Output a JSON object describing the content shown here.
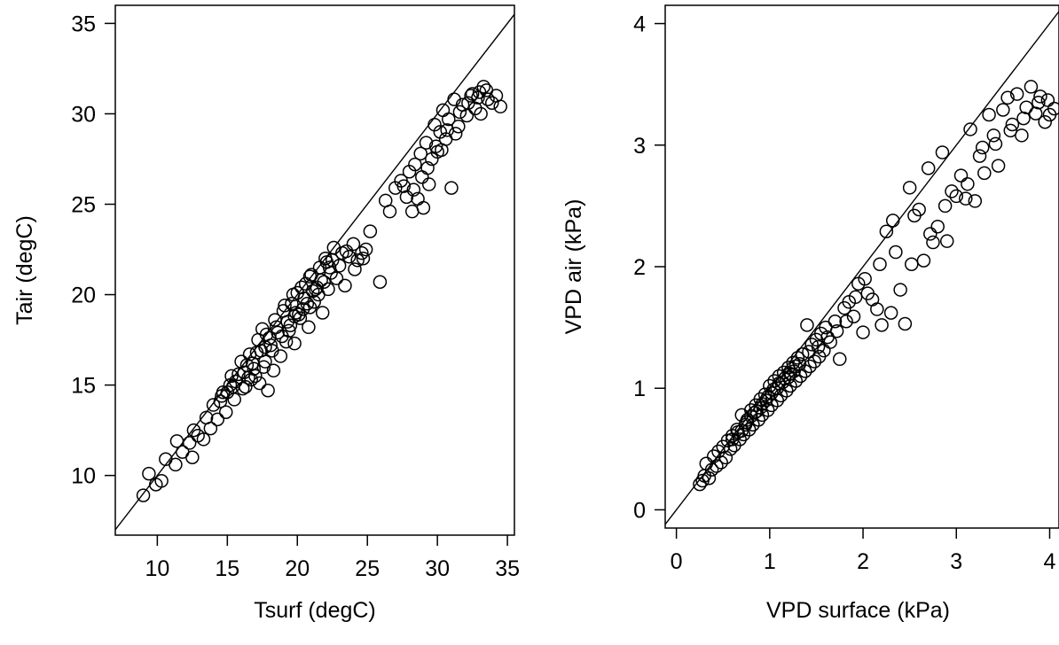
{
  "chart_data": [
    {
      "type": "scatter",
      "xlabel": "Tsurf (degC)",
      "ylabel": "Tair (degC)",
      "xlim": [
        7,
        35.5
      ],
      "ylim": [
        6.7,
        36
      ],
      "xticks": [
        10,
        15,
        20,
        25,
        30,
        35
      ],
      "yticks": [
        10,
        15,
        20,
        25,
        30,
        35
      ],
      "grid": false,
      "reference_line": "1:1",
      "marker": "open-circle",
      "points": [
        [
          9.0,
          8.9
        ],
        [
          9.4,
          10.1
        ],
        [
          9.9,
          9.5
        ],
        [
          10.3,
          9.7
        ],
        [
          10.6,
          10.9
        ],
        [
          11.3,
          10.6
        ],
        [
          11.4,
          11.9
        ],
        [
          11.8,
          11.3
        ],
        [
          12.3,
          11.8
        ],
        [
          12.5,
          11.0
        ],
        [
          12.6,
          12.5
        ],
        [
          12.9,
          12.2
        ],
        [
          13.3,
          12.0
        ],
        [
          13.5,
          13.2
        ],
        [
          13.8,
          12.6
        ],
        [
          14.0,
          13.9
        ],
        [
          14.3,
          13.1
        ],
        [
          14.6,
          14.4
        ],
        [
          14.9,
          13.5
        ],
        [
          15.2,
          15.0
        ],
        [
          15.5,
          14.2
        ],
        [
          15.8,
          15.6
        ],
        [
          16.1,
          14.8
        ],
        [
          16.4,
          16.1
        ],
        [
          16.7,
          15.3
        ],
        [
          16.9,
          15.9
        ],
        [
          17.1,
          16.8
        ],
        [
          17.3,
          15.1
        ],
        [
          17.5,
          18.1
        ],
        [
          17.7,
          16.3
        ],
        [
          17.9,
          14.7
        ],
        [
          18.1,
          17.2
        ],
        [
          18.3,
          15.8
        ],
        [
          18.5,
          18.2
        ],
        [
          18.8,
          16.6
        ],
        [
          19.0,
          19.1
        ],
        [
          19.2,
          17.4
        ],
        [
          19.4,
          18.0
        ],
        [
          19.6,
          19.5
        ],
        [
          19.8,
          17.3
        ],
        [
          20.0,
          20.1
        ],
        [
          20.2,
          18.7
        ],
        [
          20.4,
          19.2
        ],
        [
          20.6,
          20.6
        ],
        [
          20.8,
          18.2
        ],
        [
          21.0,
          21.1
        ],
        [
          21.2,
          19.6
        ],
        [
          21.4,
          20.4
        ],
        [
          21.6,
          21.5
        ],
        [
          21.8,
          19.0
        ],
        [
          22.0,
          22.0
        ],
        [
          22.2,
          20.3
        ],
        [
          22.4,
          21.2
        ],
        [
          22.6,
          22.6
        ],
        [
          22.8,
          20.9
        ],
        [
          23.0,
          21.6
        ],
        [
          23.2,
          22.3
        ],
        [
          23.4,
          20.5
        ],
        [
          23.7,
          22.1
        ],
        [
          24.0,
          22.8
        ],
        [
          24.3,
          21.9
        ],
        [
          24.6,
          22.3
        ],
        [
          24.9,
          22.5
        ],
        [
          25.2,
          23.5
        ],
        [
          25.9,
          20.7
        ],
        [
          26.3,
          25.2
        ],
        [
          26.6,
          24.6
        ],
        [
          27.0,
          25.9
        ],
        [
          27.4,
          26.3
        ],
        [
          27.8,
          25.4
        ],
        [
          28.0,
          26.8
        ],
        [
          28.2,
          24.6
        ],
        [
          28.4,
          27.2
        ],
        [
          28.6,
          25.3
        ],
        [
          28.8,
          27.8
        ],
        [
          29.0,
          24.8
        ],
        [
          29.2,
          28.4
        ],
        [
          29.4,
          26.1
        ],
        [
          29.6,
          27.5
        ],
        [
          29.8,
          29.4
        ],
        [
          30.0,
          27.9
        ],
        [
          30.2,
          29.0
        ],
        [
          30.4,
          30.2
        ],
        [
          30.6,
          28.6
        ],
        [
          30.8,
          29.7
        ],
        [
          31.0,
          25.9
        ],
        [
          31.2,
          30.8
        ],
        [
          31.5,
          29.3
        ],
        [
          31.8,
          30.5
        ],
        [
          32.1,
          29.9
        ],
        [
          32.4,
          31.0
        ],
        [
          32.7,
          30.3
        ],
        [
          33.0,
          31.2
        ],
        [
          33.3,
          31.5
        ],
        [
          33.6,
          30.8
        ],
        [
          33.9,
          30.6
        ],
        [
          34.2,
          31.0
        ],
        [
          34.5,
          30.4
        ],
        [
          14.5,
          14.1
        ],
        [
          15.0,
          14.6
        ],
        [
          15.6,
          15.2
        ],
        [
          16.2,
          15.7
        ],
        [
          16.8,
          16.2
        ],
        [
          17.4,
          16.9
        ],
        [
          18.0,
          17.6
        ],
        [
          18.6,
          17.9
        ],
        [
          19.3,
          18.5
        ],
        [
          19.9,
          19.0
        ],
        [
          20.5,
          19.8
        ],
        [
          21.1,
          20.2
        ],
        [
          21.7,
          20.8
        ],
        [
          22.3,
          21.5
        ],
        [
          15.3,
          15.5
        ],
        [
          16.0,
          16.3
        ],
        [
          16.6,
          16.7
        ],
        [
          17.2,
          17.5
        ],
        [
          17.8,
          17.8
        ],
        [
          18.4,
          18.6
        ],
        [
          19.1,
          19.4
        ],
        [
          19.7,
          20.0
        ],
        [
          20.3,
          20.4
        ],
        [
          20.9,
          21.0
        ],
        [
          21.5,
          20.0
        ],
        [
          22.1,
          21.8
        ],
        [
          16.3,
          14.9
        ],
        [
          17.0,
          15.5
        ],
        [
          17.6,
          16.0
        ],
        [
          18.2,
          16.9
        ],
        [
          18.9,
          17.7
        ],
        [
          19.5,
          18.3
        ],
        [
          20.1,
          18.9
        ],
        [
          20.7,
          19.5
        ],
        [
          21.3,
          20.3
        ],
        [
          21.9,
          20.7
        ],
        [
          14.7,
          14.6
        ],
        [
          15.4,
          14.9
        ],
        [
          16.5,
          15.4
        ],
        [
          17.7,
          17.1
        ],
        [
          19.8,
          18.8
        ],
        [
          20.9,
          19.3
        ],
        [
          22.5,
          21.9
        ],
        [
          23.5,
          22.4
        ],
        [
          24.1,
          21.4
        ],
        [
          24.7,
          22.0
        ],
        [
          28.9,
          26.5
        ],
        [
          29.9,
          28.2
        ],
        [
          30.7,
          29.1
        ],
        [
          31.6,
          30.1
        ],
        [
          32.2,
          30.6
        ],
        [
          32.9,
          30.9
        ],
        [
          33.5,
          31.3
        ],
        [
          27.6,
          26.0
        ],
        [
          28.3,
          25.8
        ],
        [
          29.3,
          27.0
        ],
        [
          30.3,
          28.0
        ],
        [
          31.3,
          28.9
        ],
        [
          32.5,
          31.1
        ],
        [
          33.1,
          30.0
        ]
      ]
    },
    {
      "type": "scatter",
      "xlabel": "VPD surface (kPa)",
      "ylabel": "VPD air (kPa)",
      "xlim": [
        -0.12,
        4.1
      ],
      "ylim": [
        -0.15,
        4.15
      ],
      "xticks": [
        0,
        1,
        2,
        3,
        4
      ],
      "yticks": [
        0,
        1,
        2,
        3,
        4
      ],
      "grid": false,
      "reference_line": "1:1",
      "marker": "open-circle",
      "points": [
        [
          0.25,
          0.21
        ],
        [
          0.28,
          0.24
        ],
        [
          0.3,
          0.28
        ],
        [
          0.32,
          0.38
        ],
        [
          0.35,
          0.26
        ],
        [
          0.38,
          0.33
        ],
        [
          0.4,
          0.44
        ],
        [
          0.43,
          0.36
        ],
        [
          0.45,
          0.48
        ],
        [
          0.48,
          0.39
        ],
        [
          0.5,
          0.52
        ],
        [
          0.53,
          0.43
        ],
        [
          0.55,
          0.57
        ],
        [
          0.58,
          0.5
        ],
        [
          0.6,
          0.61
        ],
        [
          0.62,
          0.53
        ],
        [
          0.65,
          0.66
        ],
        [
          0.68,
          0.58
        ],
        [
          0.7,
          0.78
        ],
        [
          0.72,
          0.62
        ],
        [
          0.75,
          0.72
        ],
        [
          0.78,
          0.66
        ],
        [
          0.8,
          0.82
        ],
        [
          0.82,
          0.7
        ],
        [
          0.85,
          0.86
        ],
        [
          0.88,
          0.74
        ],
        [
          0.9,
          0.91
        ],
        [
          0.92,
          0.78
        ],
        [
          0.95,
          0.95
        ],
        [
          0.98,
          0.82
        ],
        [
          1.0,
          1.02
        ],
        [
          1.02,
          0.86
        ],
        [
          1.05,
          1.06
        ],
        [
          1.08,
          0.9
        ],
        [
          1.1,
          1.1
        ],
        [
          1.12,
          0.94
        ],
        [
          1.15,
          1.13
        ],
        [
          1.18,
          0.98
        ],
        [
          1.2,
          1.17
        ],
        [
          1.22,
          1.02
        ],
        [
          1.25,
          1.21
        ],
        [
          1.28,
          1.06
        ],
        [
          1.3,
          1.25
        ],
        [
          1.33,
          1.1
        ],
        [
          1.35,
          1.28
        ],
        [
          1.38,
          1.14
        ],
        [
          1.4,
          1.52
        ],
        [
          1.43,
          1.18
        ],
        [
          1.45,
          1.36
        ],
        [
          1.48,
          1.22
        ],
        [
          1.5,
          1.4
        ],
        [
          1.53,
          1.26
        ],
        [
          1.55,
          1.45
        ],
        [
          1.58,
          1.31
        ],
        [
          1.6,
          1.5
        ],
        [
          1.65,
          1.38
        ],
        [
          1.7,
          1.55
        ],
        [
          1.75,
          1.24
        ],
        [
          1.8,
          1.66
        ],
        [
          1.85,
          1.71
        ],
        [
          1.9,
          1.59
        ],
        [
          1.95,
          1.86
        ],
        [
          2.0,
          1.46
        ],
        [
          2.05,
          1.78
        ],
        [
          2.1,
          1.73
        ],
        [
          2.15,
          1.65
        ],
        [
          2.2,
          1.52
        ],
        [
          2.25,
          2.29
        ],
        [
          2.3,
          1.62
        ],
        [
          2.35,
          2.12
        ],
        [
          2.4,
          1.81
        ],
        [
          2.45,
          1.53
        ],
        [
          2.5,
          2.65
        ],
        [
          2.55,
          2.42
        ],
        [
          2.6,
          2.47
        ],
        [
          2.65,
          2.05
        ],
        [
          2.7,
          2.81
        ],
        [
          2.75,
          2.2
        ],
        [
          2.8,
          2.33
        ],
        [
          2.85,
          2.94
        ],
        [
          2.9,
          2.21
        ],
        [
          2.95,
          2.62
        ],
        [
          3.0,
          2.58
        ],
        [
          3.05,
          2.75
        ],
        [
          3.1,
          2.56
        ],
        [
          3.15,
          3.13
        ],
        [
          3.2,
          2.54
        ],
        [
          3.25,
          2.91
        ],
        [
          3.3,
          2.77
        ],
        [
          3.35,
          3.25
        ],
        [
          3.4,
          3.08
        ],
        [
          3.45,
          2.83
        ],
        [
          3.5,
          3.29
        ],
        [
          3.55,
          3.39
        ],
        [
          3.6,
          3.17
        ],
        [
          3.65,
          3.42
        ],
        [
          3.7,
          3.08
        ],
        [
          3.75,
          3.31
        ],
        [
          3.8,
          3.48
        ],
        [
          3.85,
          3.26
        ],
        [
          3.9,
          3.4
        ],
        [
          3.95,
          3.19
        ],
        [
          4.0,
          3.25
        ],
        [
          4.05,
          3.3
        ],
        [
          0.6,
          0.58
        ],
        [
          0.66,
          0.64
        ],
        [
          0.74,
          0.7
        ],
        [
          0.8,
          0.77
        ],
        [
          0.86,
          0.81
        ],
        [
          0.92,
          0.87
        ],
        [
          0.98,
          0.93
        ],
        [
          1.04,
          0.99
        ],
        [
          1.1,
          1.04
        ],
        [
          1.16,
          1.08
        ],
        [
          1.22,
          1.12
        ],
        [
          1.28,
          1.18
        ],
        [
          0.7,
          0.65
        ],
        [
          0.76,
          0.74
        ],
        [
          0.84,
          0.8
        ],
        [
          0.9,
          0.84
        ],
        [
          0.96,
          0.9
        ],
        [
          1.02,
          0.96
        ],
        [
          1.08,
          1.0
        ],
        [
          1.14,
          1.05
        ],
        [
          1.2,
          1.09
        ],
        [
          1.26,
          1.14
        ],
        [
          1.32,
          1.2
        ],
        [
          1.42,
          1.3
        ],
        [
          1.52,
          1.34
        ],
        [
          1.62,
          1.42
        ],
        [
          1.72,
          1.47
        ],
        [
          1.82,
          1.55
        ],
        [
          1.92,
          1.75
        ],
        [
          2.02,
          1.9
        ],
        [
          2.18,
          2.02
        ],
        [
          2.32,
          2.38
        ],
        [
          2.52,
          2.02
        ],
        [
          2.72,
          2.27
        ],
        [
          2.88,
          2.5
        ],
        [
          3.12,
          2.68
        ],
        [
          3.28,
          2.98
        ],
        [
          3.42,
          3.01
        ],
        [
          3.58,
          3.12
        ],
        [
          3.72,
          3.22
        ],
        [
          3.88,
          3.35
        ],
        [
          3.98,
          3.37
        ]
      ]
    }
  ]
}
